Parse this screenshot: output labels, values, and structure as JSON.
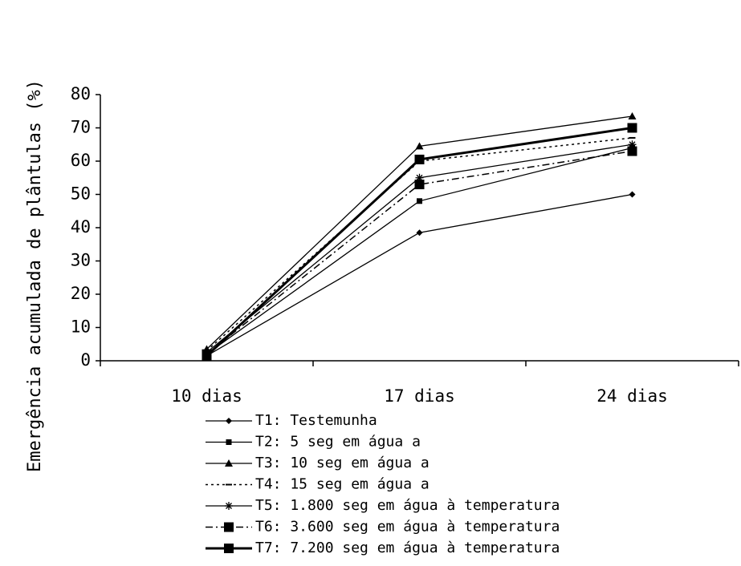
{
  "chart_data": {
    "type": "line",
    "title": "",
    "xlabel": "",
    "ylabel": "Emergência acumulada de plântulas (%)",
    "categories": [
      "10 dias",
      "17 dias",
      "24 dias"
    ],
    "ylim": [
      0,
      80
    ],
    "yticks": [
      0,
      10,
      20,
      30,
      40,
      50,
      60,
      70,
      80
    ],
    "grid": false,
    "legend_position": "bottom",
    "series": [
      {
        "name": "T1: Testemunha",
        "values": [
          1.5,
          38.5,
          50
        ],
        "marker": "diamond",
        "dash": "solid",
        "color": "#000000"
      },
      {
        "name": "T2: 5 seg em água a",
        "values": [
          2.0,
          48,
          64
        ],
        "marker": "small-square",
        "dash": "solid",
        "color": "#000000"
      },
      {
        "name": "T3: 10 seg em água a",
        "values": [
          3.5,
          64.5,
          73.5
        ],
        "marker": "triangle",
        "dash": "solid",
        "color": "#000000"
      },
      {
        "name": "T4: 15 seg em água a",
        "values": [
          3.0,
          60,
          67
        ],
        "marker": "dash",
        "dash": "dotted",
        "color": "#000000"
      },
      {
        "name": "T5: 1.800 seg em água à temperatura",
        "values": [
          2.5,
          55,
          65
        ],
        "marker": "star",
        "dash": "solid",
        "color": "#000000"
      },
      {
        "name": "T6: 3.600 seg em água à temperatura",
        "values": [
          2.0,
          53,
          63
        ],
        "marker": "square",
        "dash": "dashdot",
        "color": "#000000"
      },
      {
        "name": "T7: 7.200 seg em água à temperatura",
        "values": [
          1.5,
          60.5,
          70
        ],
        "marker": "square",
        "dash": "solid-thick",
        "color": "#000000"
      }
    ]
  }
}
